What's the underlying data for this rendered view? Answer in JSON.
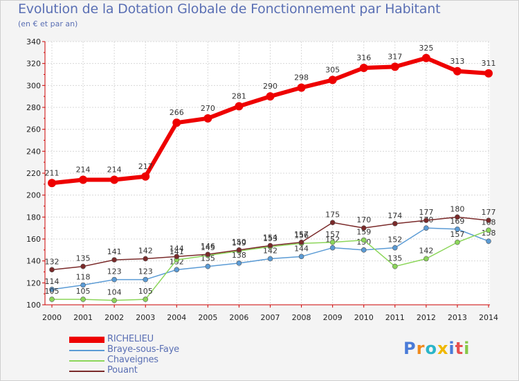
{
  "chart_data": {
    "type": "line",
    "title": "Evolution de la Dotation Globale de Fonctionnement par Habitant",
    "subtitle": "(en € et par an)",
    "xlabel": "",
    "ylabel": "",
    "ylim": [
      100,
      340
    ],
    "yticks": [
      100,
      120,
      140,
      160,
      180,
      200,
      220,
      240,
      260,
      280,
      300,
      320,
      340
    ],
    "grid": true,
    "legend": "bottom-left",
    "categories": [
      "2000",
      "2001",
      "2002",
      "2003",
      "2004",
      "2005",
      "2006",
      "2007",
      "2008",
      "2009",
      "2010",
      "2011",
      "2012",
      "2013",
      "2014"
    ],
    "series": [
      {
        "name": "RICHELIEU",
        "color": "#ee0000",
        "values": [
          211,
          214,
          214,
          217,
          266,
          270,
          281,
          290,
          298,
          305,
          316,
          317,
          325,
          313,
          311
        ]
      },
      {
        "name": "Braye-sous-Faye",
        "color": "#5b9bd5",
        "values": [
          114,
          118,
          123,
          123,
          132,
          135,
          138,
          142,
          144,
          152,
          150,
          152,
          170,
          169,
          158
        ]
      },
      {
        "name": "Chaveignes",
        "color": "#8cd65a",
        "values": [
          105,
          105,
          104,
          105,
          141,
          145,
          149,
          153,
          156,
          157,
          159,
          135,
          142,
          157,
          168
        ]
      },
      {
        "name": "Pouant",
        "color": "#7a2a2a",
        "values": [
          132,
          135,
          141,
          142,
          144,
          146,
          150,
          154,
          157,
          175,
          170,
          174,
          177,
          180,
          177
        ]
      }
    ]
  },
  "logo": {
    "letters": [
      "P",
      "r",
      "o",
      "x",
      "i",
      "t",
      "i"
    ],
    "colors": [
      "#4a7bd8",
      "#f08a1c",
      "#2ab5c8",
      "#f0b800",
      "#4a7bd8",
      "#e85050",
      "#88c848"
    ]
  }
}
